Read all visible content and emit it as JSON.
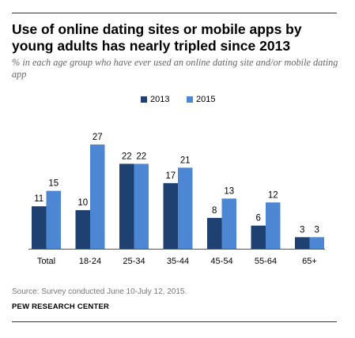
{
  "title": "Use of online dating sites or mobile apps by young adults has nearly tripled since 2013",
  "subtitle": "% in each age group who have ever used an online dating site and/or mobile dating app",
  "source": "Source: Survey conducted June 10-July 12, 2015.",
  "organization": "PEW RESEARCH CENTER",
  "colors": {
    "series_2013": "#1f4171",
    "series_2015": "#4d87d4"
  },
  "chart_data": {
    "type": "bar",
    "title": "Use of online dating sites or mobile apps by young adults has nearly tripled since 2013",
    "subtitle": "% in each age group who have ever used an online dating site and/or mobile dating app",
    "categories": [
      "Total",
      "18-24",
      "25-34",
      "35-44",
      "45-54",
      "55-64",
      "65+"
    ],
    "series": [
      {
        "name": "2013",
        "values": [
          11,
          10,
          22,
          17,
          8,
          6,
          3
        ]
      },
      {
        "name": "2015",
        "values": [
          15,
          27,
          22,
          21,
          13,
          12,
          3
        ]
      }
    ],
    "xlabel": "",
    "ylabel": "",
    "ylim": [
      0,
      27
    ],
    "grid": false,
    "legend": "top-center",
    "data_labels": true
  }
}
